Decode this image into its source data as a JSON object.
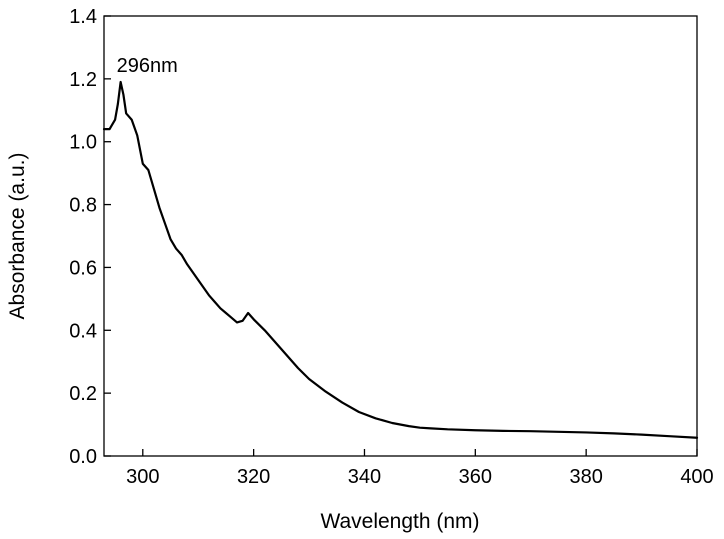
{
  "chart_data": {
    "type": "line",
    "title": "",
    "xlabel": "Wavelength (nm)",
    "ylabel": "Absorbance (a.u.)",
    "xlim": [
      293,
      400
    ],
    "ylim": [
      0.0,
      1.4
    ],
    "xticks": [
      300,
      320,
      340,
      360,
      380,
      400
    ],
    "yticks": [
      0.0,
      0.2,
      0.4,
      0.6,
      0.8,
      1.0,
      1.2,
      1.4
    ],
    "xtick_labels": [
      "300",
      "320",
      "340",
      "360",
      "380",
      "400"
    ],
    "ytick_labels": [
      "0.0",
      "0.2",
      "0.4",
      "0.6",
      "0.8",
      "1.0",
      "1.2",
      "1.4"
    ],
    "grid": false,
    "legend": false,
    "line_color": "#000000",
    "annotations": [
      {
        "text": "296nm",
        "x": 296,
        "y": 1.19
      }
    ],
    "series": [
      {
        "x": [
          293,
          294,
          295,
          295.5,
          296,
          296.5,
          297,
          298,
          299,
          300,
          300.5,
          301,
          302,
          303,
          304,
          305,
          306,
          307,
          308,
          309,
          310,
          311,
          312,
          313,
          314,
          315,
          316,
          317,
          318,
          319,
          320,
          322,
          325,
          328,
          330,
          333,
          336,
          339,
          342,
          345,
          348,
          350,
          352,
          355,
          360,
          365,
          370,
          375,
          380,
          385,
          390,
          395,
          400
        ],
        "y": [
          1.04,
          1.04,
          1.07,
          1.12,
          1.19,
          1.15,
          1.09,
          1.07,
          1.02,
          0.93,
          0.92,
          0.91,
          0.85,
          0.79,
          0.74,
          0.69,
          0.66,
          0.64,
          0.61,
          0.585,
          0.56,
          0.535,
          0.51,
          0.49,
          0.47,
          0.455,
          0.44,
          0.425,
          0.43,
          0.455,
          0.435,
          0.4,
          0.34,
          0.28,
          0.245,
          0.205,
          0.17,
          0.14,
          0.12,
          0.105,
          0.095,
          0.09,
          0.088,
          0.085,
          0.082,
          0.08,
          0.079,
          0.077,
          0.075,
          0.072,
          0.068,
          0.063,
          0.058
        ]
      }
    ]
  }
}
